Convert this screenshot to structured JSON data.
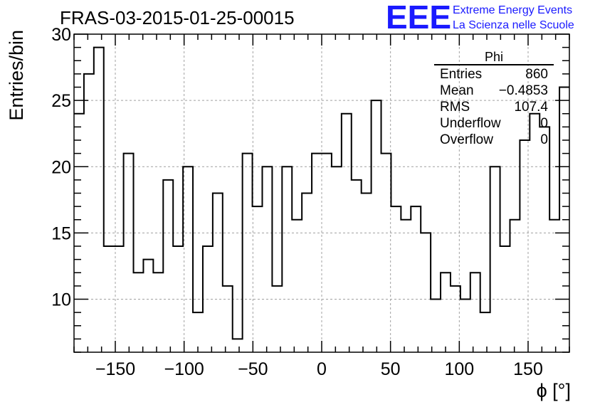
{
  "logo": {
    "mark": "EEE",
    "line1": "Extreme Energy Events",
    "line2": "La Scienza nelle Scuole",
    "color": "#1a1aff"
  },
  "chart_data": {
    "type": "histogram",
    "title": "FRAS-03-2015-01-25-00015",
    "xlabel": "ϕ [°]",
    "ylabel": "Entries/bin",
    "xlim": [
      -180,
      180
    ],
    "ylim": [
      6,
      30
    ],
    "bin_width": 7.2,
    "x_ticks": [
      -150,
      -100,
      -50,
      0,
      50,
      100,
      150
    ],
    "x_tick_labels": [
      "−150",
      "−100",
      "−50",
      "0",
      "50",
      "100",
      "150"
    ],
    "y_ticks": [
      10,
      15,
      20,
      25,
      30
    ],
    "y_tick_labels": [
      "10",
      "15",
      "20",
      "25",
      "30"
    ],
    "grid": true,
    "line_color": "#000000",
    "values": [
      24,
      27,
      29,
      14,
      14,
      21,
      12,
      13,
      12,
      19,
      14,
      20,
      9,
      14,
      18,
      11,
      7,
      21,
      17,
      20,
      11,
      20,
      16,
      18,
      21,
      21,
      20,
      24,
      19,
      18,
      25,
      21,
      17,
      16,
      17,
      15,
      10,
      12,
      11,
      10,
      12,
      9,
      20,
      14,
      16,
      22,
      24,
      23,
      16,
      26
    ],
    "stats": {
      "name": "Phi",
      "rows": [
        {
          "label": "Entries",
          "value": "860"
        },
        {
          "label": "Mean",
          "value": "−0.4853"
        },
        {
          "label": "RMS",
          "value": "107.4"
        },
        {
          "label": "Underflow",
          "value": "0"
        },
        {
          "label": "Overflow",
          "value": "0"
        }
      ]
    }
  }
}
